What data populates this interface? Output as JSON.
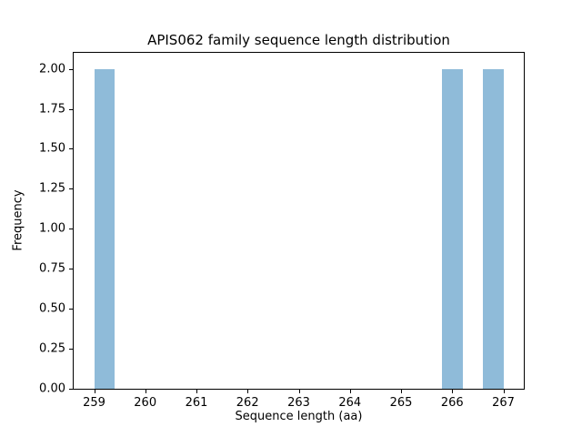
{
  "chart_data": {
    "type": "bar",
    "subtype": "histogram",
    "title": "APIS062 family sequence length distribution",
    "xlabel": "Sequence length (aa)",
    "ylabel": "Frequency",
    "bars": [
      {
        "bin_start": 259.0,
        "bin_end": 259.4,
        "frequency": 2
      },
      {
        "bin_start": 265.8,
        "bin_end": 266.2,
        "frequency": 2
      },
      {
        "bin_start": 266.6,
        "bin_end": 267.0,
        "frequency": 2
      }
    ],
    "bin_width": 0.4,
    "x_ticks": [
      {
        "label": "259",
        "value": 259
      },
      {
        "label": "260",
        "value": 260
      },
      {
        "label": "261",
        "value": 261
      },
      {
        "label": "262",
        "value": 262
      },
      {
        "label": "263",
        "value": 263
      },
      {
        "label": "264",
        "value": 264
      },
      {
        "label": "265",
        "value": 265
      },
      {
        "label": "266",
        "value": 266
      },
      {
        "label": "267",
        "value": 267
      }
    ],
    "y_ticks": [
      {
        "label": "0.00",
        "value": 0.0
      },
      {
        "label": "0.25",
        "value": 0.25
      },
      {
        "label": "0.50",
        "value": 0.5
      },
      {
        "label": "0.75",
        "value": 0.75
      },
      {
        "label": "1.00",
        "value": 1.0
      },
      {
        "label": "1.25",
        "value": 1.25
      },
      {
        "label": "1.50",
        "value": 1.5
      },
      {
        "label": "1.75",
        "value": 1.75
      },
      {
        "label": "2.00",
        "value": 2.0
      }
    ],
    "xlim": [
      258.6,
      267.4
    ],
    "ylim": [
      0,
      2.1
    ],
    "bar_color": "#8fbbd9",
    "spine_color": "#000000",
    "background_color": "#ffffff",
    "grid": false,
    "legend": null
  }
}
